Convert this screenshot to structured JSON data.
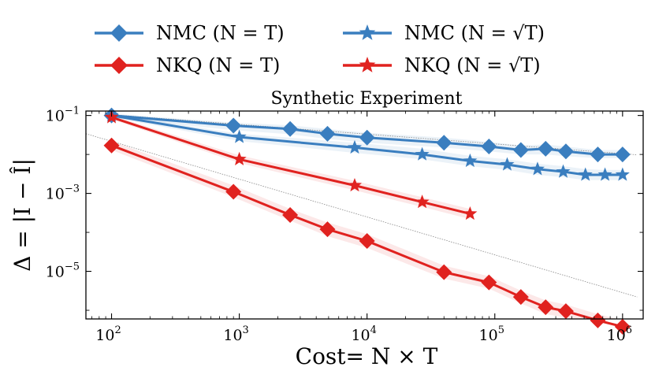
{
  "chart_data": {
    "type": "line",
    "title": "Synthetic Experiment",
    "xlabel": "Cost= N × T",
    "ylabel": "Δ = |I − Î|",
    "xscale": "log",
    "yscale": "log",
    "xlim": [
      63,
      1450000
    ],
    "ylim": [
      6e-07,
      0.13
    ],
    "xticks": [
      {
        "value": 100,
        "base": "10",
        "exp": "2"
      },
      {
        "value": 1000,
        "base": "10",
        "exp": "3"
      },
      {
        "value": 10000,
        "base": "10",
        "exp": "4"
      },
      {
        "value": 100000,
        "base": "10",
        "exp": "5"
      },
      {
        "value": 1000000,
        "base": "10",
        "exp": "6"
      }
    ],
    "yticks": [
      {
        "value": 0.1,
        "base": "10",
        "exp": "−1"
      },
      {
        "value": 0.001,
        "base": "10",
        "exp": "−3"
      },
      {
        "value": 1e-05,
        "base": "10",
        "exp": "−5"
      }
    ],
    "legend_position": "top",
    "colors": {
      "nmc": "#3a7ebf",
      "nkq": "#e0221f",
      "ref": "#888888"
    },
    "reference_lines": [
      {
        "name": "nmc-rate",
        "points": [
          [
            100,
            0.105
          ],
          [
            1300000,
            0.0098
          ]
        ]
      },
      {
        "name": "nkq-rate",
        "points": [
          [
            63,
            0.034
          ],
          [
            1300000,
            2.2e-06
          ]
        ]
      }
    ],
    "series": [
      {
        "name": "NMC (N = T)",
        "legend_text": "NMC (N = T)",
        "color": "#3a7ebf",
        "marker": "diamond",
        "x": [
          100,
          900,
          2500,
          4900,
          10000,
          40000,
          90000,
          160000,
          250000,
          360000,
          640000,
          1000000
        ],
        "y": [
          0.1,
          0.055,
          0.045,
          0.034,
          0.027,
          0.02,
          0.016,
          0.013,
          0.014,
          0.012,
          0.01,
          0.01
        ],
        "band_low": [
          0.088,
          0.042,
          0.033,
          0.025,
          0.02,
          0.015,
          0.012,
          0.01,
          0.01,
          0.009,
          0.008,
          0.008
        ],
        "band_high": [
          0.112,
          0.066,
          0.056,
          0.045,
          0.036,
          0.027,
          0.021,
          0.017,
          0.018,
          0.016,
          0.013,
          0.013
        ]
      },
      {
        "name": "NMC (N = √T)",
        "legend_text": "NMC (N = √T)",
        "color": "#3a7ebf",
        "marker": "star",
        "x": [
          100,
          1000,
          8000,
          27000,
          64000,
          125000,
          216000,
          343000,
          512000,
          729000,
          1000000
        ],
        "y": [
          0.1,
          0.028,
          0.015,
          0.01,
          0.0068,
          0.0055,
          0.0042,
          0.0036,
          0.003,
          0.003,
          0.003
        ],
        "band_low": [
          0.09,
          0.022,
          0.011,
          0.0075,
          0.005,
          0.004,
          0.003,
          0.0026,
          0.0022,
          0.0022,
          0.0022
        ],
        "band_high": [
          0.11,
          0.034,
          0.02,
          0.014,
          0.0092,
          0.0075,
          0.0058,
          0.005,
          0.0042,
          0.004,
          0.004
        ]
      },
      {
        "name": "NKQ (N = T)",
        "legend_text": "NKQ (N = T)",
        "color": "#e0221f",
        "marker": "diamond",
        "x": [
          100,
          900,
          2500,
          4900,
          10000,
          40000,
          90000,
          160000,
          250000,
          360000,
          640000,
          1000000
        ],
        "y": [
          0.017,
          0.0011,
          0.00028,
          0.00012,
          6e-05,
          9.5e-06,
          5.2e-06,
          2.2e-06,
          1.2e-06,
          9.5e-07,
          5.5e-07,
          3.8e-07
        ],
        "band_low": [
          0.013,
          0.0008,
          0.0002,
          8e-05,
          4e-05,
          6.5e-06,
          3.6e-06,
          1.5e-06,
          8e-07,
          6.5e-07,
          3.8e-07,
          2.7e-07
        ],
        "band_high": [
          0.022,
          0.0016,
          0.0004,
          0.00018,
          9e-05,
          1.4e-05,
          7.5e-06,
          3.2e-06,
          1.8e-06,
          1.4e-06,
          8e-07,
          5.5e-07
        ]
      },
      {
        "name": "NKQ (N = √T)",
        "legend_text": "NKQ (N = √T)",
        "color": "#e0221f",
        "marker": "star",
        "x": [
          100,
          1000,
          8000,
          27000,
          64000
        ],
        "y": [
          0.09,
          0.0075,
          0.0016,
          0.0006,
          0.0003
        ],
        "band_low": [
          0.08,
          0.006,
          0.0012,
          0.00045,
          0.00022
        ],
        "band_high": [
          0.1,
          0.0095,
          0.0021,
          0.0008,
          0.0004
        ]
      }
    ]
  }
}
